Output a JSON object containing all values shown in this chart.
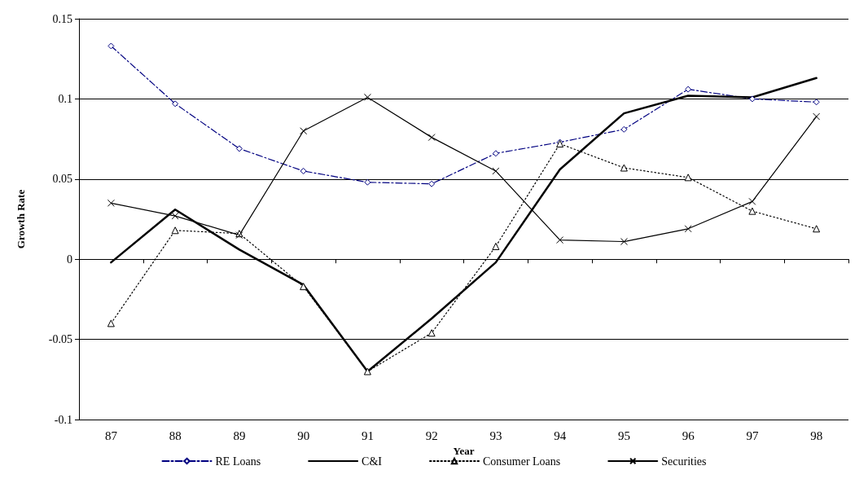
{
  "chart_data": {
    "type": "line",
    "xlabel": "Year",
    "ylabel": "Growth Rate",
    "categories": [
      "87",
      "88",
      "89",
      "90",
      "91",
      "92",
      "93",
      "94",
      "95",
      "96",
      "97",
      "98"
    ],
    "ylim": [
      -0.1,
      0.15
    ],
    "yticks": [
      -0.1,
      -0.05,
      0,
      0.05,
      0.1,
      0.15
    ],
    "grid": "y",
    "legend": "bottom",
    "series": [
      {
        "name": "RE Loans",
        "color": "#000080",
        "marker": "diamond",
        "line_style": "dashed",
        "values": [
          0.133,
          0.097,
          0.069,
          0.055,
          0.048,
          0.047,
          0.066,
          0.073,
          0.081,
          0.106,
          0.1,
          0.098
        ]
      },
      {
        "name": "C&I",
        "color": "#000000",
        "marker": "none",
        "line_style": "solid",
        "values": [
          -0.002,
          0.031,
          0.006,
          -0.016,
          -0.07,
          -0.037,
          -0.002,
          0.056,
          0.091,
          0.102,
          0.101,
          0.113
        ]
      },
      {
        "name": "Consumer Loans",
        "color": "#000000",
        "marker": "triangle",
        "line_style": "dotted",
        "values": [
          -0.04,
          0.018,
          0.016,
          -0.017,
          -0.07,
          -0.046,
          0.008,
          0.072,
          0.057,
          0.051,
          0.03,
          0.019
        ]
      },
      {
        "name": "Securities",
        "color": "#000000",
        "marker": "cross",
        "line_style": "solid",
        "values": [
          0.035,
          0.027,
          0.015,
          0.08,
          0.101,
          0.076,
          0.055,
          0.012,
          0.011,
          0.019,
          0.036,
          0.089
        ]
      }
    ]
  }
}
